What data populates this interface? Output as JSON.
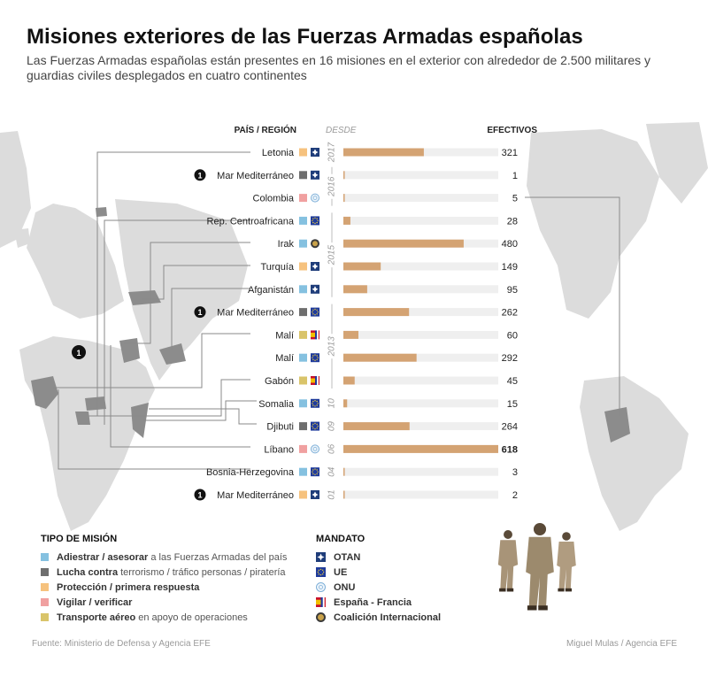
{
  "header": {
    "title": "Misiones exteriores de las Fuerzas Armadas españolas",
    "subtitle": "Las Fuerzas Armadas españolas están presentes en 16 misiones en el exterior con alrededor de 2.500 militares y guardias civiles desplegados en cuatro continentes"
  },
  "columns": {
    "country": "PAÍS / REGIÓN",
    "since": "DESDE",
    "troops": "EFECTIVOS"
  },
  "map_marker_label": "1",
  "colors": {
    "bar": "#d4a373",
    "track": "#efefef",
    "map_land": "#dcdcdc",
    "map_highlight": "#8c8c8c",
    "adiestrar": "#85c1e0",
    "lucha": "#6e6e6e",
    "proteccion": "#f6c27e",
    "vigilar": "#f0a0a0",
    "transporte": "#d9c46a"
  },
  "chart_data": {
    "type": "bar",
    "orientation": "horizontal",
    "xlim": [
      0,
      618
    ],
    "categories": [
      "Letonia",
      "Mar Mediterráneo",
      "Colombia",
      "Rep. Centroafricana",
      "Irak",
      "Turquía",
      "Afganistán",
      "Mar Mediterráneo",
      "Malí",
      "Malí",
      "Gabón",
      "Somalia",
      "Djibuti",
      "Líbano",
      "Bosnia-Herzegovina",
      "Mar Mediterráneo"
    ],
    "values": [
      321,
      1,
      5,
      28,
      480,
      149,
      95,
      262,
      60,
      292,
      45,
      15,
      264,
      618,
      3,
      2
    ],
    "value_labels": [
      "321",
      "1",
      "5",
      "28",
      "480",
      "149",
      "95",
      "262",
      "60",
      "292",
      "45",
      "15",
      "264",
      "618",
      "3",
      "2"
    ],
    "bold_value_index": 13,
    "marker": [
      "",
      "1",
      "",
      "",
      "",
      "",
      "",
      "1",
      "",
      "",
      "",
      "",
      "",
      "",
      "",
      "1"
    ],
    "mission_type": [
      "proteccion",
      "lucha",
      "vigilar",
      "adiestrar",
      "adiestrar",
      "proteccion",
      "adiestrar",
      "lucha",
      "transporte",
      "adiestrar",
      "transporte",
      "adiestrar",
      "lucha",
      "vigilar",
      "adiestrar",
      "proteccion"
    ],
    "mandate": [
      "otan",
      "otan",
      "onu",
      "ue",
      "coalicion",
      "otan",
      "otan",
      "ue",
      "espana_francia",
      "ue",
      "espana_francia",
      "ue",
      "ue",
      "onu",
      "ue",
      "otan"
    ],
    "since_groups": [
      {
        "label": "2017",
        "from": 0,
        "to": 0
      },
      {
        "label": "2016",
        "from": 1,
        "to": 2
      },
      {
        "label": "2015",
        "from": 3,
        "to": 6
      },
      {
        "label": "2013",
        "from": 7,
        "to": 10
      },
      {
        "label": "10",
        "from": 11,
        "to": 11
      },
      {
        "label": "09",
        "from": 12,
        "to": 12
      },
      {
        "label": "06",
        "from": 13,
        "to": 13
      },
      {
        "label": "04",
        "from": 14,
        "to": 14
      },
      {
        "label": "01",
        "from": 15,
        "to": 15
      }
    ]
  },
  "legend_mission": {
    "title": "TIPO DE MISIÓN",
    "items": [
      {
        "key": "adiestrar",
        "strong": "Adiestrar / asesorar",
        "rest": "a las Fuerzas Armadas del país"
      },
      {
        "key": "lucha",
        "strong": "Lucha contra",
        "rest": "terrorismo / tráfico personas / piratería"
      },
      {
        "key": "proteccion",
        "strong": "Protección / primera respuesta",
        "rest": ""
      },
      {
        "key": "vigilar",
        "strong": "Vigilar / verificar",
        "rest": ""
      },
      {
        "key": "transporte",
        "strong": "Transporte aéreo",
        "rest": "en apoyo de operaciones"
      }
    ]
  },
  "legend_mandate": {
    "title": "MANDATO",
    "items": [
      {
        "key": "otan",
        "icon": "otan-icon",
        "label": "OTAN"
      },
      {
        "key": "ue",
        "icon": "ue-flag-icon",
        "label": "UE"
      },
      {
        "key": "onu",
        "icon": "onu-icon",
        "label": "ONU"
      },
      {
        "key": "espana_francia",
        "icon": "spain-france-flag-icon",
        "label": "España - Francia"
      },
      {
        "key": "coalicion",
        "icon": "coalition-icon",
        "label": "Coalición Internacional"
      }
    ]
  },
  "footer": {
    "source": "Fuente: Ministerio de Defensa y Agencia EFE",
    "credit": "Miguel Mulas / Agencia EFE"
  }
}
